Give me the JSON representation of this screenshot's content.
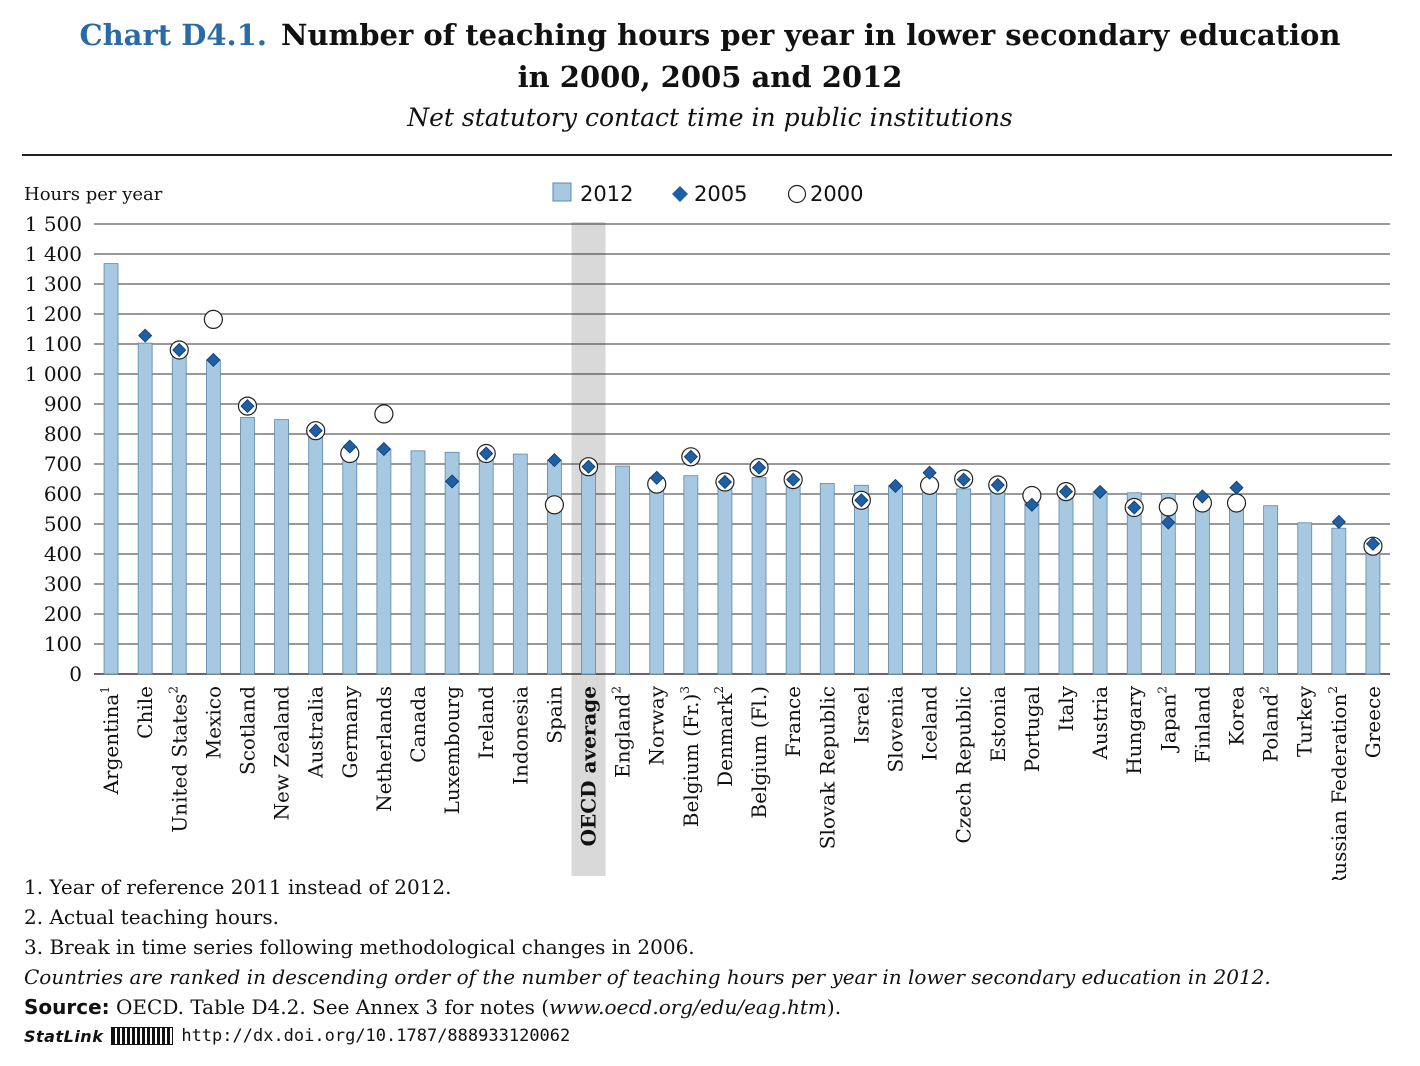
{
  "title": {
    "label": "Chart D4.1.",
    "line1": "Number of teaching hours per year in lower secondary education",
    "line2": "in 2000, 2005 and 2012",
    "subtitle": "Net statutory contact time in public institutions"
  },
  "notes": {
    "n1": "1. Year of reference 2011 instead of 2012.",
    "n2": "2. Actual teaching hours.",
    "n3": "3. Break in time series following methodological changes in 2006.",
    "ranking": "Countries are ranked in descending order of the number of teaching hours per year in lower secondary education in 2012.",
    "source_label": "Source:",
    "source_text": "OECD. Table D4.2. See Annex 3 for notes (",
    "source_url": "www.oecd.org/edu/eag.htm",
    "source_end": ")."
  },
  "statlink": {
    "label": "StatLink",
    "url": "http://dx.doi.org/10.1787/888933120062"
  },
  "chart_data": {
    "type": "bar",
    "ylabel": "Hours per year",
    "ylim": [
      0,
      1500
    ],
    "yticks": [
      0,
      100,
      200,
      300,
      400,
      500,
      600,
      700,
      800,
      900,
      1000,
      1100,
      1200,
      1300,
      1400,
      1500
    ],
    "ytick_labels": [
      "0",
      "100",
      "200",
      "300",
      "400",
      "500",
      "600",
      "700",
      "800",
      "900",
      "1 000",
      "1 100",
      "1 200",
      "1 300",
      "1 400",
      "1 500"
    ],
    "grid": true,
    "legend_position": "top-center",
    "highlight_category": "OECD average",
    "colors": {
      "bar": "#a6c8e0",
      "bar_edge": "#5d87a8",
      "diamond": "#1f5fa3",
      "highlight": "#d9d9d9",
      "grid": "#333333"
    },
    "categories": [
      {
        "name": "Argentina",
        "sup": "1"
      },
      {
        "name": "Chile",
        "sup": ""
      },
      {
        "name": "United States",
        "sup": "2"
      },
      {
        "name": "Mexico",
        "sup": ""
      },
      {
        "name": "Scotland",
        "sup": ""
      },
      {
        "name": "New Zealand",
        "sup": ""
      },
      {
        "name": "Australia",
        "sup": ""
      },
      {
        "name": "Germany",
        "sup": ""
      },
      {
        "name": "Netherlands",
        "sup": ""
      },
      {
        "name": "Canada",
        "sup": ""
      },
      {
        "name": "Luxembourg",
        "sup": ""
      },
      {
        "name": "Ireland",
        "sup": ""
      },
      {
        "name": "Indonesia",
        "sup": ""
      },
      {
        "name": "Spain",
        "sup": ""
      },
      {
        "name": "OECD average",
        "sup": ""
      },
      {
        "name": "England",
        "sup": "2"
      },
      {
        "name": "Norway",
        "sup": ""
      },
      {
        "name": "Belgium (Fr.)",
        "sup": "3"
      },
      {
        "name": "Denmark",
        "sup": "2"
      },
      {
        "name": "Belgium (Fl.)",
        "sup": ""
      },
      {
        "name": "France",
        "sup": ""
      },
      {
        "name": "Slovak Republic",
        "sup": ""
      },
      {
        "name": "Israel",
        "sup": ""
      },
      {
        "name": "Slovenia",
        "sup": ""
      },
      {
        "name": "Iceland",
        "sup": ""
      },
      {
        "name": "Czech Republic",
        "sup": ""
      },
      {
        "name": "Estonia",
        "sup": ""
      },
      {
        "name": "Portugal",
        "sup": ""
      },
      {
        "name": "Italy",
        "sup": ""
      },
      {
        "name": "Austria",
        "sup": ""
      },
      {
        "name": "Hungary",
        "sup": ""
      },
      {
        "name": "Japan",
        "sup": "2"
      },
      {
        "name": "Finland",
        "sup": ""
      },
      {
        "name": "Korea",
        "sup": ""
      },
      {
        "name": "Poland",
        "sup": "2"
      },
      {
        "name": "Turkey",
        "sup": ""
      },
      {
        "name": "Russian Federation",
        "sup": "2"
      },
      {
        "name": "Greece",
        "sup": ""
      }
    ],
    "series": [
      {
        "name": "2012",
        "marker": "bar",
        "values": [
          1368,
          1103,
          1074,
          1047,
          855,
          848,
          803,
          745,
          750,
          744,
          739,
          735,
          733,
          713,
          694,
          693,
          654,
          661,
          648,
          655,
          648,
          635,
          629,
          627,
          624,
          617,
          612,
          602,
          601,
          607,
          604,
          602,
          592,
          569,
          561,
          504,
          486,
          415
        ]
      },
      {
        "name": "2005",
        "marker": "diamond",
        "values": [
          null,
          1128,
          1080,
          1047,
          893,
          null,
          811,
          758,
          750,
          null,
          642,
          735,
          null,
          713,
          691,
          null,
          654,
          724,
          640,
          688,
          648,
          null,
          579,
          627,
          671,
          648,
          630,
          564,
          608,
          607,
          555,
          505,
          592,
          621,
          null,
          null,
          507,
          434
        ]
      },
      {
        "name": "2000",
        "marker": "circle",
        "values": [
          null,
          null,
          1080,
          1182,
          893,
          null,
          811,
          735,
          867,
          null,
          null,
          735,
          null,
          564,
          691,
          null,
          633,
          724,
          640,
          688,
          648,
          null,
          579,
          null,
          629,
          650,
          630,
          595,
          608,
          null,
          555,
          557,
          570,
          570,
          null,
          null,
          null,
          426
        ]
      }
    ]
  }
}
